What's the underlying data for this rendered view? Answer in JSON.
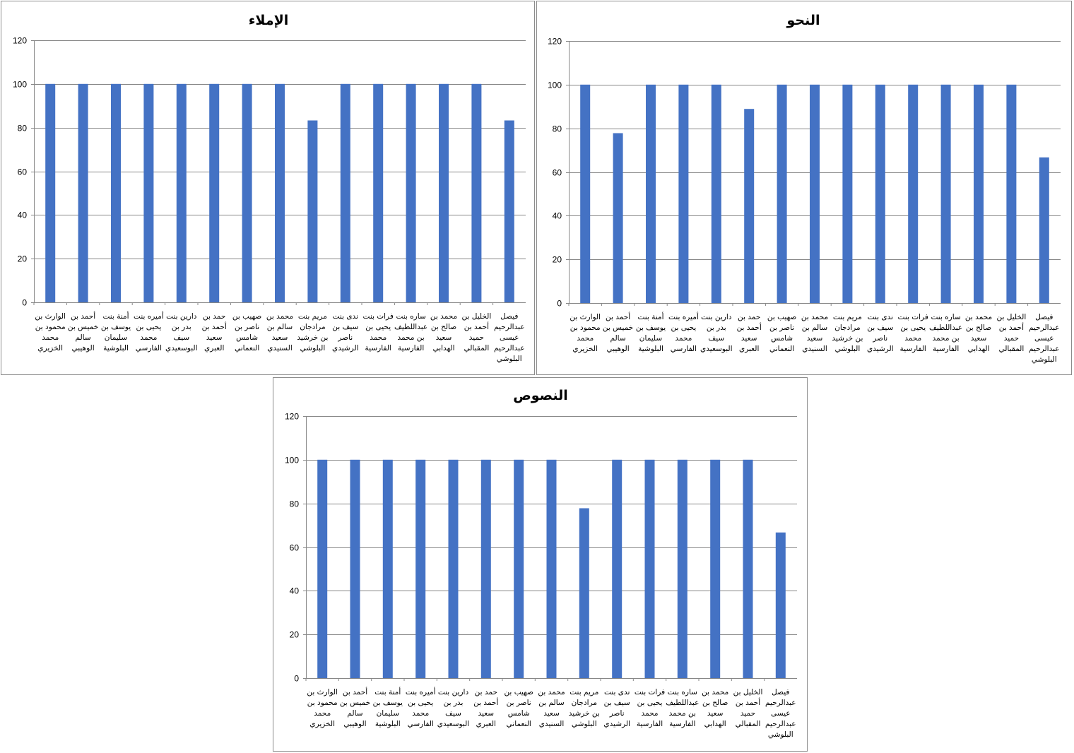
{
  "colors": {
    "bar": "#4472C4",
    "grid": "#878787",
    "axis": "#878787"
  },
  "chart_data": [
    {
      "type": "bar",
      "title": "الإملاء",
      "categories": [
        "الوارث بن محمود بن محمد الخزيري",
        "أحمد بن خميس بن سالم الوهيبي",
        "أمنة بنت يوسف بن سليمان البلوشية",
        "أميره بنت يحيى بن محمد الفارسي",
        "دارين بنت بدر بن سيف البوسعيدي",
        "حمد بن أحمد بن سعيد العبري",
        "صهيب بن ناصر بن شامس النعماني",
        "محمد بن سالم بن سعيد السنيدي",
        "مريم بنت مرادجان بن خرشيد البلوشي",
        "ندى بنت سيف بن ناصر الرشيدي",
        "فرات بنت يحيى بن محمد الفارسية",
        "ساره بنت عبداللطيف بن محمد الفارسية",
        "محمد بن صالح بن سعيد الهدابي",
        "الخليل بن أحمد بن حميد المقبالي",
        "فيصل عبدالرحيم عيسى عبدالرحيم البلوشي"
      ],
      "label_lines": [
        [
          "الوارث بن",
          "محمود بن",
          "محمد",
          "الخزيري"
        ],
        [
          "أحمد بن",
          "خميس بن",
          "سالم",
          "الوهيبي"
        ],
        [
          "أمنة بنت",
          "يوسف بن",
          "سليمان",
          "البلوشية"
        ],
        [
          "أميره بنت",
          "يحيى بن",
          "محمد",
          "الفارسي"
        ],
        [
          "دارين بنت",
          "بدر بن",
          "سيف",
          "البوسعيدي"
        ],
        [
          "حمد بن",
          "أحمد بن",
          "سعيد",
          "العبري"
        ],
        [
          "صهيب بن",
          "ناصر بن",
          "شامس",
          "النعماني"
        ],
        [
          "محمد بن",
          "سالم بن",
          "سعيد",
          "السنيدي"
        ],
        [
          "مريم بنت",
          "مرادجان",
          "بن خرشيد",
          "البلوشي"
        ],
        [
          "ندى بنت",
          "سيف بن",
          "ناصر",
          "الرشيدي"
        ],
        [
          "فرات بنت",
          "يحيى بن",
          "محمد",
          "الفارسية"
        ],
        [
          "ساره بنت",
          "عبداللطيف",
          "بن محمد",
          "الفارسية"
        ],
        [
          "محمد بن",
          "صالح بن",
          "سعيد",
          "الهدابي"
        ],
        [
          "الخليل بن",
          "أحمد بن",
          "حميد",
          "المقبالي"
        ],
        [
          "فيصل",
          "عبدالرحيم",
          "عيسى",
          "عبدالرحيم",
          "البلوشي"
        ]
      ],
      "values": [
        100,
        100,
        100,
        100,
        100,
        100,
        100,
        100,
        83.3,
        100,
        100,
        100,
        100,
        100,
        83.3
      ],
      "ylim": [
        0,
        120
      ],
      "yticks": [
        0,
        20,
        40,
        60,
        80,
        100,
        120
      ],
      "grid": true,
      "legend": "none"
    },
    {
      "type": "bar",
      "title": "النحو",
      "categories": [
        "الوارث بن محمود بن محمد الخزيري",
        "أحمد بن خميس بن سالم الوهيبي",
        "أمنة بنت يوسف بن سليمان البلوشية",
        "أميره بنت يحيى بن محمد الفارسي",
        "دارين بنت بدر بن سيف البوسعيدي",
        "حمد بن أحمد بن سعيد العبري",
        "صهيب بن ناصر بن شامس النعماني",
        "محمد بن سالم بن سعيد السنيدي",
        "مريم بنت مرادجان بن خرشيد البلوشي",
        "ندى بنت سيف بن ناصر الرشيدي",
        "فرات بنت يحيى بن محمد الفارسية",
        "ساره بنت عبداللطيف بن محمد الفارسية",
        "محمد بن صالح بن سعيد الهدابي",
        "الخليل بن أحمد بن حميد المقبالي",
        "فيصل عبدالرحيم عيسى عبدالرحيم البلوشي"
      ],
      "label_lines": [
        [
          "الوارث بن",
          "محمود بن",
          "محمد",
          "الخزيري"
        ],
        [
          "أحمد بن",
          "خميس بن",
          "سالم",
          "الوهيبي"
        ],
        [
          "أمنة بنت",
          "يوسف بن",
          "سليمان",
          "البلوشية"
        ],
        [
          "أميره بنت",
          "يحيى بن",
          "محمد",
          "الفارسي"
        ],
        [
          "دارين بنت",
          "بدر بن",
          "سيف",
          "البوسعيدي"
        ],
        [
          "حمد بن",
          "أحمد بن",
          "سعيد",
          "العبري"
        ],
        [
          "صهيب بن",
          "ناصر بن",
          "شامس",
          "النعماني"
        ],
        [
          "محمد بن",
          "سالم بن",
          "سعيد",
          "السنيدي"
        ],
        [
          "مريم بنت",
          "مرادجان",
          "بن خرشيد",
          "البلوشي"
        ],
        [
          "ندى بنت",
          "سيف بن",
          "ناصر",
          "الرشيدي"
        ],
        [
          "فرات بنت",
          "يحيى بن",
          "محمد",
          "الفارسية"
        ],
        [
          "ساره بنت",
          "عبداللطيف",
          "بن محمد",
          "الفارسية"
        ],
        [
          "محمد بن",
          "صالح بن",
          "سعيد",
          "الهدابي"
        ],
        [
          "الخليل بن",
          "أحمد بن",
          "حميد",
          "المقبالي"
        ],
        [
          "فيصل",
          "عبدالرحيم",
          "عيسى",
          "عبدالرحيم",
          "البلوشي"
        ]
      ],
      "values": [
        100,
        77.8,
        100,
        100,
        100,
        88.9,
        100,
        100,
        100,
        100,
        100,
        100,
        100,
        100,
        66.7
      ],
      "ylim": [
        0,
        120
      ],
      "yticks": [
        0,
        20,
        40,
        60,
        80,
        100,
        120
      ],
      "grid": true,
      "legend": "none"
    },
    {
      "type": "bar",
      "title": "النصوص",
      "categories": [
        "الوارث بن محمود بن محمد الخزيري",
        "أحمد بن خميس بن سالم الوهيبي",
        "أمنة بنت يوسف بن سليمان البلوشية",
        "أميره بنت يحيى بن محمد الفارسي",
        "دارين بنت بدر بن سيف البوسعيدي",
        "حمد بن أحمد بن سعيد العبري",
        "صهيب بن ناصر بن شامس النعماني",
        "محمد بن سالم بن سعيد السنيدي",
        "مريم بنت مرادجان بن خرشيد البلوشي",
        "ندى بنت سيف بن ناصر الرشيدي",
        "فرات بنت يحيى بن محمد الفارسية",
        "ساره بنت عبداللطيف بن محمد الفارسية",
        "محمد بن صالح بن سعيد الهدابي",
        "الخليل بن أحمد بن حميد المقبالي",
        "فيصل عبدالرحيم عيسى عبدالرحيم البلوشي"
      ],
      "label_lines": [
        [
          "الوارث بن",
          "محمود بن",
          "محمد",
          "الخزيري"
        ],
        [
          "أحمد بن",
          "خميس بن",
          "سالم",
          "الوهيبي"
        ],
        [
          "أمنة بنت",
          "يوسف بن",
          "سليمان",
          "البلوشية"
        ],
        [
          "أميره بنت",
          "يحيى بن",
          "محمد",
          "الفارسي"
        ],
        [
          "دارين بنت",
          "بدر بن",
          "سيف",
          "البوسعيدي"
        ],
        [
          "حمد بن",
          "أحمد بن",
          "سعيد",
          "العبري"
        ],
        [
          "صهيب بن",
          "ناصر بن",
          "شامس",
          "النعماني"
        ],
        [
          "محمد بن",
          "سالم بن",
          "سعيد",
          "السنيدي"
        ],
        [
          "مريم بنت",
          "مرادجان",
          "بن خرشيد",
          "البلوشي"
        ],
        [
          "ندى بنت",
          "سيف بن",
          "ناصر",
          "الرشيدي"
        ],
        [
          "فرات بنت",
          "يحيى بن",
          "محمد",
          "الفارسية"
        ],
        [
          "ساره بنت",
          "عبداللطيف",
          "بن محمد",
          "الفارسية"
        ],
        [
          "محمد بن",
          "صالح بن",
          "سعيد",
          "الهدابي"
        ],
        [
          "الخليل بن",
          "أحمد بن",
          "حميد",
          "المقبالي"
        ],
        [
          "فيصل",
          "عبدالرحيم",
          "عيسى",
          "عبدالرحيم",
          "البلوشي"
        ]
      ],
      "values": [
        100,
        100,
        100,
        100,
        100,
        100,
        100,
        100,
        77.8,
        100,
        100,
        100,
        100,
        100,
        66.7
      ],
      "ylim": [
        0,
        120
      ],
      "yticks": [
        0,
        20,
        40,
        60,
        80,
        100,
        120
      ],
      "grid": true,
      "legend": "none"
    }
  ]
}
